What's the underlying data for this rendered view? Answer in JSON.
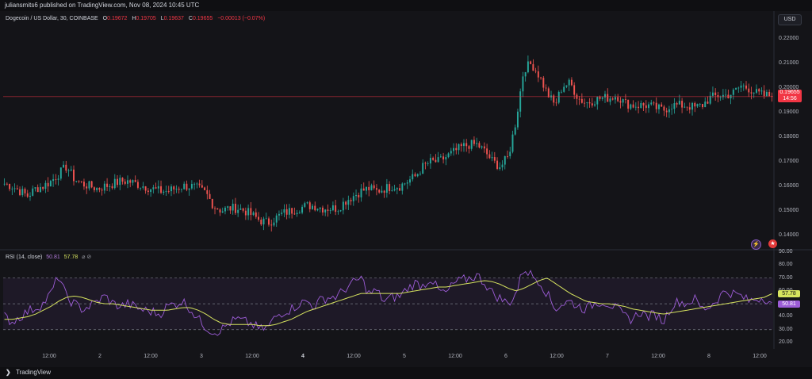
{
  "header": {
    "published_text": "juliansmits6 published on TradingView.com, Nov 08, 2024 10:45 UTC"
  },
  "legend": {
    "symbol": "Dogecoin / US Dollar, 30, COINBASE",
    "o_label": "O",
    "o_value": "0.19672",
    "h_label": "H",
    "h_value": "0.19705",
    "l_label": "L",
    "l_value": "0.19637",
    "c_label": "C",
    "c_value": "0.19655",
    "change": "−0.00013 (−0.07%)"
  },
  "currency_button": "USD",
  "price_axis": [
    "0.22000",
    "0.21000",
    "0.20000",
    "0.19000",
    "0.18000",
    "0.17000",
    "0.16000",
    "0.15000",
    "0.14000"
  ],
  "last_price": {
    "value": "0.19655",
    "countdown": "14:56"
  },
  "rsi": {
    "label": "RSI (14, close)",
    "value": "50.81",
    "ma_value": "57.78",
    "settings_icons": "⌀ ⊘",
    "axis": [
      "90.00",
      "80.00",
      "70.00",
      "60.00",
      "50.00",
      "40.00",
      "30.00",
      "20.00"
    ]
  },
  "time_axis": [
    {
      "label": "12:00",
      "bold": false
    },
    {
      "label": "2",
      "bold": false
    },
    {
      "label": "12:00",
      "bold": false
    },
    {
      "label": "3",
      "bold": false
    },
    {
      "label": "12:00",
      "bold": false
    },
    {
      "label": "4",
      "bold": true
    },
    {
      "label": "12:00",
      "bold": false
    },
    {
      "label": "5",
      "bold": false
    },
    {
      "label": "12:00",
      "bold": false
    },
    {
      "label": "6",
      "bold": false
    },
    {
      "label": "12:00",
      "bold": false
    },
    {
      "label": "7",
      "bold": false
    },
    {
      "label": "12:00",
      "bold": false
    },
    {
      "label": "8",
      "bold": false
    },
    {
      "label": "12:00",
      "bold": false
    }
  ],
  "footer": {
    "brand": "TradingView",
    "logo_icon": "tradingview-logo-icon"
  },
  "icons": {
    "flash": "flash-icon",
    "flag": "us-flag-icon"
  },
  "colors": {
    "up": "#26a69a",
    "down": "#ef5350",
    "rsi_line": "#9c5cd6",
    "rsi_ma": "#d6e35f",
    "price_line": "#f23645",
    "background": "#141418"
  },
  "chart_data": {
    "type": "candlestick",
    "symbol": "Dogecoin / US Dollar",
    "interval": "30",
    "exchange": "COINBASE",
    "y_range": [
      0.135,
      0.225
    ],
    "close_path": [
      0.161,
      0.16,
      0.158,
      0.156,
      0.159,
      0.16,
      0.162,
      0.165,
      0.168,
      0.163,
      0.161,
      0.16,
      0.159,
      0.16,
      0.161,
      0.162,
      0.162,
      0.161,
      0.16,
      0.159,
      0.158,
      0.158,
      0.159,
      0.16,
      0.16,
      0.159,
      0.157,
      0.152,
      0.15,
      0.151,
      0.151,
      0.15,
      0.148,
      0.146,
      0.145,
      0.147,
      0.149,
      0.15,
      0.151,
      0.152,
      0.152,
      0.151,
      0.151,
      0.151,
      0.154,
      0.156,
      0.158,
      0.159,
      0.158,
      0.159,
      0.16,
      0.16,
      0.162,
      0.164,
      0.168,
      0.17,
      0.17,
      0.172,
      0.174,
      0.176,
      0.177,
      0.177,
      0.174,
      0.17,
      0.168,
      0.172,
      0.187,
      0.208,
      0.21,
      0.205,
      0.198,
      0.193,
      0.201,
      0.202,
      0.196,
      0.194,
      0.195,
      0.196,
      0.196,
      0.197,
      0.194,
      0.193,
      0.193,
      0.193,
      0.192,
      0.191,
      0.193,
      0.193,
      0.193,
      0.192,
      0.193,
      0.196,
      0.197,
      0.197,
      0.198,
      0.201,
      0.2,
      0.198,
      0.197,
      0.197
    ],
    "last_close": 0.19655,
    "rsi_range": [
      20,
      90
    ],
    "rsi_levels": [
      70,
      50,
      30
    ],
    "rsi_values": [
      40,
      36,
      40,
      44,
      47,
      50,
      58,
      72,
      55,
      50,
      46,
      48,
      52,
      56,
      50,
      48,
      50,
      47,
      45,
      44,
      42,
      48,
      50,
      52,
      46,
      38,
      32,
      28,
      30,
      35,
      38,
      36,
      34,
      30,
      32,
      40,
      44,
      46,
      50,
      52,
      48,
      54,
      55,
      56,
      62,
      66,
      70,
      58,
      60,
      52,
      55,
      56,
      62,
      66,
      64,
      70,
      60,
      58,
      66,
      68,
      70,
      72,
      66,
      58,
      54,
      50,
      58,
      78,
      72,
      68,
      58,
      46,
      50,
      52,
      48,
      46,
      50,
      52,
      50,
      46,
      40,
      38,
      44,
      40,
      42,
      36,
      48,
      52,
      50,
      54,
      46,
      48,
      54,
      60,
      58,
      56,
      52,
      54,
      55,
      51
    ],
    "rsi_ma": [
      38,
      38,
      39,
      40,
      42,
      45,
      48,
      52,
      55,
      56,
      55,
      53,
      51,
      50,
      50,
      49,
      48,
      47,
      46,
      45,
      45,
      45,
      46,
      47,
      47,
      45,
      42,
      38,
      35,
      34,
      34,
      34,
      34,
      33,
      33,
      34,
      36,
      38,
      41,
      44,
      46,
      48,
      50,
      52,
      54,
      56,
      58,
      58,
      58,
      58,
      58,
      58,
      59,
      60,
      61,
      62,
      63,
      63,
      64,
      65,
      66,
      67,
      68,
      67,
      65,
      62,
      60,
      62,
      65,
      68,
      70,
      66,
      62,
      58,
      55,
      52,
      51,
      50,
      50,
      49,
      48,
      46,
      45,
      44,
      43,
      42,
      43,
      44,
      45,
      46,
      47,
      48,
      49,
      50,
      51,
      52,
      53,
      54,
      55,
      57.78
    ]
  }
}
